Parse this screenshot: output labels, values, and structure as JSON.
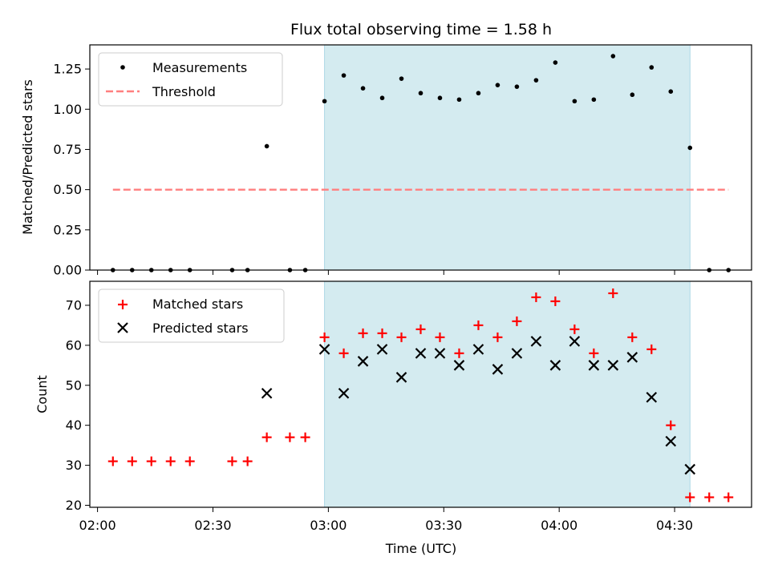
{
  "chart_data": [
    {
      "type": "scatter",
      "title": "Flux total observing time = 1.58 h",
      "xlabel": "",
      "ylabel": "Matched/Predicted stars",
      "ylim": [
        0,
        1.4
      ],
      "yticks": [
        0.0,
        0.25,
        0.5,
        0.75,
        1.0,
        1.25
      ],
      "ytick_labels": [
        "0.00",
        "0.25",
        "0.50",
        "0.75",
        "1.00",
        "1.25"
      ],
      "xlim_minutes": [
        118,
        290
      ],
      "observing_window": {
        "start": "02:59",
        "end": "04:34"
      },
      "threshold": {
        "value": 0.5,
        "start": "02:04",
        "end": "04:44"
      },
      "legend": {
        "position": "top-left",
        "entries": [
          "Measurements",
          "Threshold"
        ]
      },
      "series": [
        {
          "name": "Measurements",
          "x": [
            "02:04",
            "02:09",
            "02:14",
            "02:19",
            "02:24",
            "02:35",
            "02:39",
            "02:44",
            "02:50",
            "02:54",
            "02:59",
            "03:04",
            "03:09",
            "03:14",
            "03:19",
            "03:24",
            "03:29",
            "03:34",
            "03:39",
            "03:44",
            "03:49",
            "03:54",
            "03:59",
            "04:04",
            "04:09",
            "04:14",
            "04:19",
            "04:24",
            "04:29",
            "04:34",
            "04:39",
            "04:44"
          ],
          "values": [
            0,
            0,
            0,
            0,
            0,
            0,
            0,
            0.77,
            0,
            0,
            1.05,
            1.21,
            1.13,
            1.07,
            1.19,
            1.1,
            1.07,
            1.06,
            1.1,
            1.15,
            1.14,
            1.18,
            1.29,
            1.05,
            1.06,
            1.33,
            1.09,
            1.26,
            1.11,
            0.76,
            0,
            0
          ]
        }
      ]
    },
    {
      "type": "scatter",
      "title": "",
      "xlabel": "Time (UTC)",
      "ylabel": "Count",
      "ylim": [
        19.5,
        76
      ],
      "yticks": [
        20,
        30,
        40,
        50,
        60,
        70
      ],
      "ytick_labels": [
        "20",
        "30",
        "40",
        "50",
        "60",
        "70"
      ],
      "xticks": [
        "02:00",
        "02:30",
        "03:00",
        "03:30",
        "04:00",
        "04:30"
      ],
      "legend": {
        "position": "top-left",
        "entries": [
          "Matched stars",
          "Predicted stars"
        ]
      },
      "series": [
        {
          "name": "Matched stars",
          "x": [
            "02:04",
            "02:09",
            "02:14",
            "02:19",
            "02:24",
            "02:35",
            "02:39",
            "02:44",
            "02:50",
            "02:54",
            "02:59",
            "03:04",
            "03:09",
            "03:14",
            "03:19",
            "03:24",
            "03:29",
            "03:34",
            "03:39",
            "03:44",
            "03:49",
            "03:54",
            "03:59",
            "04:04",
            "04:09",
            "04:14",
            "04:19",
            "04:24",
            "04:29",
            "04:34",
            "04:39",
            "04:44"
          ],
          "values": [
            31,
            31,
            31,
            31,
            31,
            31,
            31,
            37,
            37,
            37,
            62,
            58,
            63,
            63,
            62,
            64,
            62,
            58,
            65,
            62,
            66,
            72,
            71,
            64,
            58,
            73,
            62,
            59,
            40,
            22,
            22,
            22
          ]
        },
        {
          "name": "Predicted stars",
          "x": [
            "02:44",
            "02:59",
            "03:04",
            "03:09",
            "03:14",
            "03:19",
            "03:24",
            "03:29",
            "03:34",
            "03:39",
            "03:44",
            "03:49",
            "03:54",
            "03:59",
            "04:04",
            "04:09",
            "04:14",
            "04:19",
            "04:24",
            "04:29",
            "04:34"
          ],
          "values": [
            48,
            59,
            48,
            56,
            59,
            52,
            58,
            58,
            55,
            59,
            54,
            58,
            61,
            55,
            61,
            55,
            55,
            57,
            47,
            36,
            29
          ]
        }
      ]
    }
  ],
  "colors": {
    "measurement": "#000000",
    "threshold": "#ff7f7f",
    "matched": "#ff0000",
    "predicted": "#000000",
    "window": "#d4ebf0",
    "window_edge": "#add8e6"
  }
}
